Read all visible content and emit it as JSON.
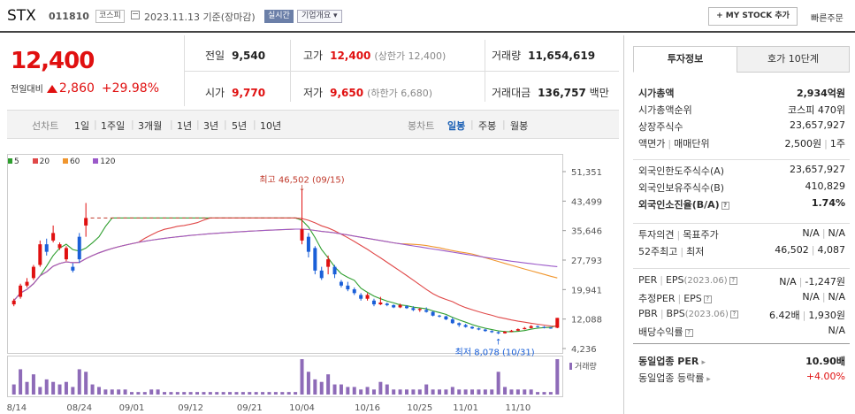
{
  "header": {
    "name": "STX",
    "code": "011810",
    "market_badge": "코스피",
    "date": "2023.11.13 기준(장마감)",
    "live": "실시간",
    "corp_info": "기업개요",
    "my_stock": "MY STOCK 추가",
    "quick_order": "빠른주문"
  },
  "price": {
    "current": "12,400",
    "change_label": "전일대비",
    "change": "2,860",
    "change_pct": "+29.98%"
  },
  "stats": {
    "prev_label": "전일",
    "prev": "9,540",
    "high_label": "고가",
    "high": "12,400",
    "upper_limit": "(상한가 12,400)",
    "volume_label": "거래량",
    "volume": "11,654,619",
    "open_label": "시가",
    "open": "9,770",
    "low_label": "저가",
    "low": "9,650",
    "lower_limit": "(하한가 6,680)",
    "amount_label": "거래대금",
    "amount": "136,757",
    "amount_unit": "백만"
  },
  "toolbar": {
    "line_label": "선차트",
    "periods": [
      "1일",
      "1주일",
      "3개월",
      "1년",
      "3년",
      "5년",
      "10년"
    ],
    "candle_label": "봉차트",
    "candle_periods": [
      "일봉",
      "주봉",
      "월봉"
    ],
    "candle_active": "일봉"
  },
  "chart_data": {
    "type": "candlestick",
    "legend": [
      {
        "name": "5",
        "color": "#2e9e2e"
      },
      {
        "name": "20",
        "color": "#e04848"
      },
      {
        "name": "60",
        "color": "#f0962e"
      },
      {
        "name": "120",
        "color": "#9b59c9"
      }
    ],
    "y_ticks": [
      "51,351",
      "43,499",
      "35,646",
      "27,793",
      "19,941",
      "12,088",
      "4,236"
    ],
    "ylim": [
      4236,
      51351
    ],
    "x_ticks": [
      "08/14",
      "08/24",
      "09/01",
      "09/12",
      "09/21",
      "10/04",
      "10/16",
      "10/25",
      "11/01",
      "11/10"
    ],
    "high_annotation": "최고 46,502 (09/15)",
    "low_annotation": "최저 8,078 (10/31)",
    "volume_label": "거래량",
    "candles": [
      {
        "o": 16000,
        "c": 17000,
        "h": 17500,
        "l": 15500
      },
      {
        "o": 18000,
        "c": 21000,
        "h": 21500,
        "l": 17500
      },
      {
        "o": 21000,
        "c": 22000,
        "h": 23000,
        "l": 20500
      },
      {
        "o": 23000,
        "c": 26000,
        "h": 26500,
        "l": 22500
      },
      {
        "o": 26500,
        "c": 32000,
        "h": 33000,
        "l": 26000
      },
      {
        "o": 32000,
        "c": 30000,
        "h": 33500,
        "l": 29000
      },
      {
        "o": 33000,
        "c": 35000,
        "h": 37000,
        "l": 32500
      },
      {
        "o": 31000,
        "c": 32000,
        "h": 32500,
        "l": 30500
      },
      {
        "o": 28000,
        "c": 31000,
        "h": 31500,
        "l": 27500
      },
      {
        "o": 26000,
        "c": 25000,
        "h": 27000,
        "l": 24500
      },
      {
        "o": 34000,
        "c": 28000,
        "h": 35000,
        "l": 27000
      },
      {
        "o": 37000,
        "c": 39000,
        "h": 43000,
        "l": 34000
      },
      {
        "o": 39000,
        "c": 39000,
        "h": 39000,
        "l": 39000
      },
      {
        "o": 39000,
        "c": 39000,
        "h": 39000,
        "l": 39000
      },
      {
        "o": 39000,
        "c": 39000,
        "h": 39000,
        "l": 39000
      },
      {
        "o": 39000,
        "c": 39000,
        "h": 39000,
        "l": 39000
      },
      {
        "o": 39000,
        "c": 39000,
        "h": 39000,
        "l": 39000
      },
      {
        "o": 39000,
        "c": 39000,
        "h": 39000,
        "l": 39000
      },
      {
        "o": 39000,
        "c": 39000,
        "h": 39000,
        "l": 39000
      },
      {
        "o": 39000,
        "c": 39000,
        "h": 39000,
        "l": 39000
      },
      {
        "o": 39000,
        "c": 39000,
        "h": 39000,
        "l": 39000
      },
      {
        "o": 39000,
        "c": 39000,
        "h": 39000,
        "l": 39000
      },
      {
        "o": 39000,
        "c": 39000,
        "h": 39000,
        "l": 39000
      },
      {
        "o": 39000,
        "c": 39000,
        "h": 39000,
        "l": 39000
      },
      {
        "o": 39000,
        "c": 39000,
        "h": 39000,
        "l": 39000
      },
      {
        "o": 39000,
        "c": 39000,
        "h": 39000,
        "l": 39000
      },
      {
        "o": 39000,
        "c": 39000,
        "h": 39000,
        "l": 39000
      },
      {
        "o": 39000,
        "c": 39000,
        "h": 39000,
        "l": 39000
      },
      {
        "o": 39000,
        "c": 39000,
        "h": 39000,
        "l": 39000
      },
      {
        "o": 39000,
        "c": 39000,
        "h": 39000,
        "l": 39000
      },
      {
        "o": 39000,
        "c": 39000,
        "h": 39000,
        "l": 39000
      },
      {
        "o": 39000,
        "c": 39000,
        "h": 39000,
        "l": 39000
      },
      {
        "o": 39000,
        "c": 39000,
        "h": 39000,
        "l": 39000
      },
      {
        "o": 39000,
        "c": 39000,
        "h": 39000,
        "l": 39000
      },
      {
        "o": 39000,
        "c": 39000,
        "h": 39000,
        "l": 39000
      },
      {
        "o": 39000,
        "c": 39000,
        "h": 39000,
        "l": 39000
      },
      {
        "o": 39000,
        "c": 39000,
        "h": 39000,
        "l": 39000
      },
      {
        "o": 39000,
        "c": 39000,
        "h": 39000,
        "l": 39000
      },
      {
        "o": 39000,
        "c": 39000,
        "h": 39000,
        "l": 39000
      },
      {
        "o": 39000,
        "c": 39000,
        "h": 39000,
        "l": 39000
      },
      {
        "o": 39000,
        "c": 39000,
        "h": 39000,
        "l": 39000
      },
      {
        "o": 39000,
        "c": 39000,
        "h": 39000,
        "l": 39000
      },
      {
        "o": 39000,
        "c": 39000,
        "h": 39000,
        "l": 39000
      },
      {
        "o": 39000,
        "c": 39000,
        "h": 39000,
        "l": 39000
      },
      {
        "o": 33000,
        "c": 36000,
        "h": 46502,
        "l": 32000
      },
      {
        "o": 34000,
        "c": 30000,
        "h": 35000,
        "l": 28500
      },
      {
        "o": 31000,
        "c": 25000,
        "h": 31500,
        "l": 24000
      },
      {
        "o": 25000,
        "c": 23000,
        "h": 26000,
        "l": 22500
      },
      {
        "o": 26000,
        "c": 28000,
        "h": 29000,
        "l": 24000
      },
      {
        "o": 26000,
        "c": 24000,
        "h": 26500,
        "l": 23000
      },
      {
        "o": 22000,
        "c": 21000,
        "h": 22500,
        "l": 20500
      },
      {
        "o": 21000,
        "c": 20000,
        "h": 22000,
        "l": 19500
      },
      {
        "o": 20000,
        "c": 19000,
        "h": 20500,
        "l": 18500
      },
      {
        "o": 18500,
        "c": 17500,
        "h": 19000,
        "l": 17000
      },
      {
        "o": 17500,
        "c": 18500,
        "h": 19000,
        "l": 17000
      },
      {
        "o": 17000,
        "c": 16000,
        "h": 17500,
        "l": 15500
      },
      {
        "o": 16000,
        "c": 16500,
        "h": 18000,
        "l": 15800
      },
      {
        "o": 16200,
        "c": 15800,
        "h": 16500,
        "l": 15500
      },
      {
        "o": 15800,
        "c": 15200,
        "h": 16000,
        "l": 15000
      },
      {
        "o": 15200,
        "c": 15800,
        "h": 16200,
        "l": 15000
      },
      {
        "o": 15500,
        "c": 15000,
        "h": 15800,
        "l": 14800
      },
      {
        "o": 15000,
        "c": 14500,
        "h": 15500,
        "l": 14200
      },
      {
        "o": 14500,
        "c": 14800,
        "h": 15000,
        "l": 14000
      },
      {
        "o": 14500,
        "c": 14000,
        "h": 15200,
        "l": 13800
      },
      {
        "o": 14000,
        "c": 13000,
        "h": 14200,
        "l": 12800
      },
      {
        "o": 13000,
        "c": 12800,
        "h": 13200,
        "l": 12500
      },
      {
        "o": 12800,
        "c": 12000,
        "h": 13000,
        "l": 11800
      },
      {
        "o": 12000,
        "c": 11000,
        "h": 12500,
        "l": 10800
      },
      {
        "o": 11000,
        "c": 10500,
        "h": 11200,
        "l": 10000
      },
      {
        "o": 10500,
        "c": 10000,
        "h": 10800,
        "l": 9800
      },
      {
        "o": 10000,
        "c": 9600,
        "h": 10200,
        "l": 9400
      },
      {
        "o": 9600,
        "c": 9300,
        "h": 9800,
        "l": 9100
      },
      {
        "o": 9300,
        "c": 8900,
        "h": 9500,
        "l": 8700
      },
      {
        "o": 8900,
        "c": 8600,
        "h": 9100,
        "l": 8400
      },
      {
        "o": 8600,
        "c": 8300,
        "h": 8800,
        "l": 8078
      },
      {
        "o": 8300,
        "c": 8700,
        "h": 8900,
        "l": 8200
      },
      {
        "o": 8700,
        "c": 9000,
        "h": 9200,
        "l": 8600
      },
      {
        "o": 9000,
        "c": 9400,
        "h": 9600,
        "l": 8900
      },
      {
        "o": 9400,
        "c": 9700,
        "h": 10000,
        "l": 9300
      },
      {
        "o": 9700,
        "c": 10200,
        "h": 10500,
        "l": 9600
      },
      {
        "o": 10200,
        "c": 10000,
        "h": 10400,
        "l": 9800
      },
      {
        "o": 10000,
        "c": 9800,
        "h": 10200,
        "l": 9600
      },
      {
        "o": 9800,
        "c": 9600,
        "h": 10000,
        "l": 9500
      },
      {
        "o": 9770,
        "c": 12400,
        "h": 12400,
        "l": 9650
      }
    ],
    "volumes": [
      4,
      10,
      5,
      8,
      3,
      6,
      5,
      4,
      5,
      3,
      10,
      9,
      4,
      3,
      2,
      2,
      2,
      2,
      1,
      1,
      1,
      2,
      2,
      1,
      1,
      1,
      1,
      1,
      1,
      1,
      1,
      1,
      1,
      1,
      1,
      1,
      1,
      1,
      1,
      1,
      1,
      1,
      1,
      1,
      14,
      9,
      6,
      5,
      8,
      4,
      4,
      3,
      3,
      2,
      3,
      2,
      5,
      4,
      2,
      2,
      2,
      2,
      2,
      4,
      2,
      2,
      2,
      3,
      2,
      2,
      2,
      2,
      2,
      2,
      9,
      3,
      2,
      2,
      2,
      2,
      1,
      1,
      1,
      14
    ]
  },
  "invest": {
    "tab_active": "투자정보",
    "tab_other": "호가 10단계",
    "rows1": [
      {
        "k": "시가총액",
        "v": "2,934억원",
        "bold": true
      },
      {
        "k": "시가총액순위",
        "v": "코스피 470위"
      },
      {
        "k": "상장주식수",
        "v": "23,657,927"
      },
      {
        "k": "액면가",
        "k2": "매매단위",
        "v": "2,500원",
        "v2": "1주"
      }
    ],
    "rows2": [
      {
        "k": "외국인한도주식수(A)",
        "v": "23,657,927"
      },
      {
        "k": "외국인보유주식수(B)",
        "v": "410,829"
      },
      {
        "k": "외국인소진율(B/A)",
        "v": "1.74%",
        "bold": true
      }
    ],
    "rows3": [
      {
        "k": "투자의견",
        "k2": "목표주가",
        "v": "N/A",
        "v2": "N/A"
      },
      {
        "k": "52주최고",
        "k2": "최저",
        "v": "46,502",
        "v2": "4,087"
      }
    ],
    "rows4": [
      {
        "k": "PER",
        "k2": "EPS",
        "k2b": "(2023.06)",
        "v": "N/A",
        "v2": "-1,247원"
      },
      {
        "k": "추정PER",
        "k2": "EPS",
        "v": "N/A",
        "v2": "N/A"
      },
      {
        "k": "PBR",
        "k2": "BPS",
        "k2b": "(2023.06)",
        "v": "6.42배",
        "v2": "1,930원"
      },
      {
        "k": "배당수익률",
        "v": "N/A"
      }
    ],
    "rows5": [
      {
        "k": "동일업종 PER",
        "v": "10.90배",
        "bold": true
      },
      {
        "k": "동일업종 등락률",
        "v": "+4.00%",
        "red": true
      }
    ]
  }
}
